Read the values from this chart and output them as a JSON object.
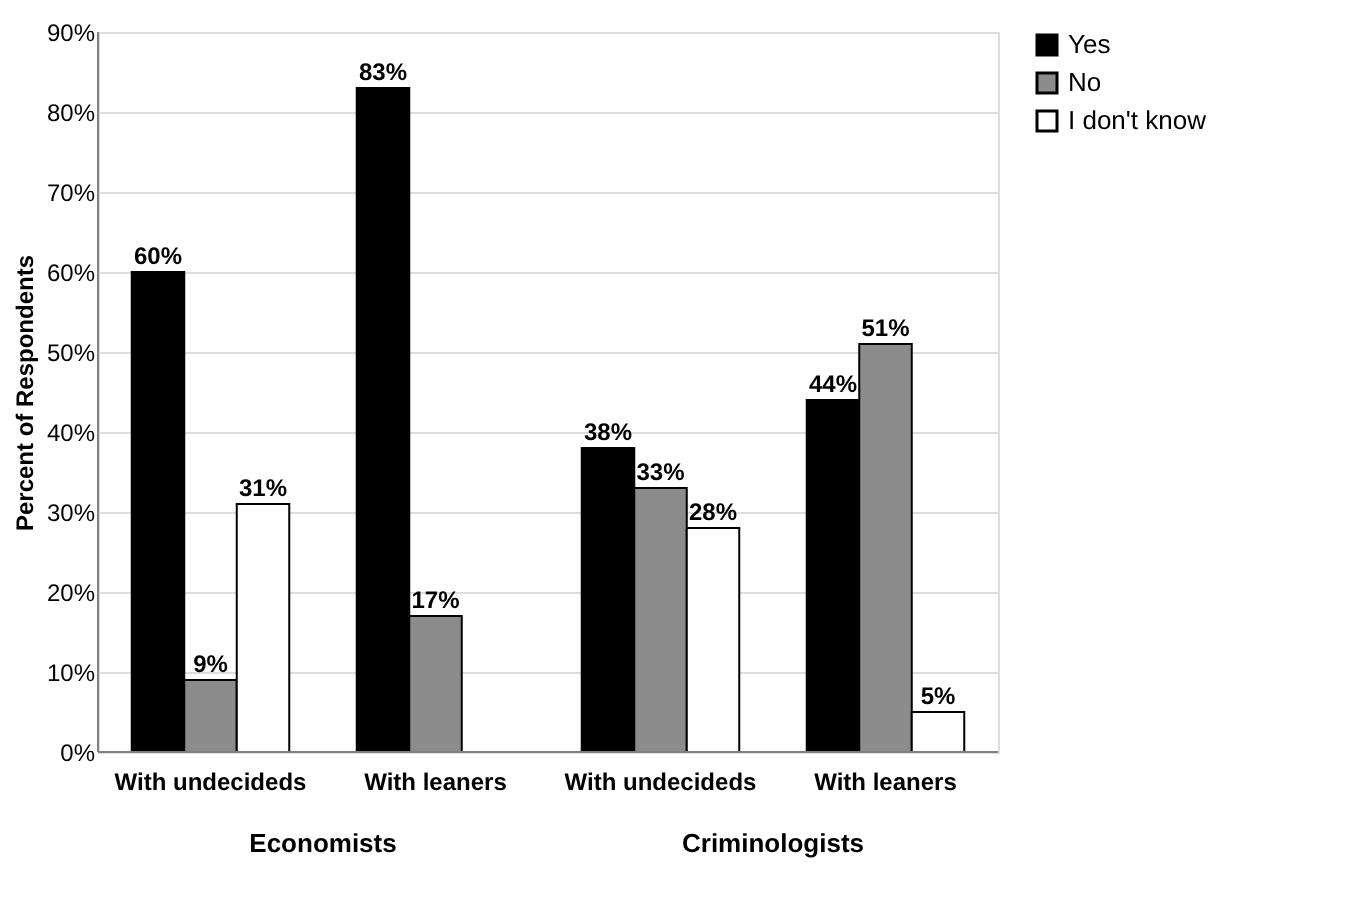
{
  "chart_data": {
    "type": "bar",
    "ylabel": "Percent of Respondents",
    "categories": [
      "With undecideds",
      "With leaners",
      "With undecideds",
      "With leaners"
    ],
    "annotations": [
      "Economists",
      "Criminologists"
    ],
    "series": [
      {
        "name": "Yes",
        "color": "#000000",
        "values": [
          60,
          83,
          38,
          44
        ],
        "value_labels": [
          "60%",
          "83%",
          "38%",
          "44%"
        ]
      },
      {
        "name": "No",
        "color": "#8c8c8c",
        "values": [
          9,
          17,
          33,
          51
        ],
        "value_labels": [
          "9%",
          "17%",
          "33%",
          "51%"
        ]
      },
      {
        "name": "I don't know",
        "color": "#ffffff",
        "values": [
          31,
          null,
          28,
          5
        ],
        "value_labels": [
          "31%",
          null,
          "28%",
          "5%"
        ]
      }
    ],
    "ylim": [
      0,
      90
    ],
    "yticks": [
      {
        "value": 0,
        "label": "0%"
      },
      {
        "value": 10,
        "label": "10%"
      },
      {
        "value": 20,
        "label": "20%"
      },
      {
        "value": 30,
        "label": "30%"
      },
      {
        "value": 40,
        "label": "40%"
      },
      {
        "value": 50,
        "label": "50%"
      },
      {
        "value": 60,
        "label": "60%"
      },
      {
        "value": 70,
        "label": "70%"
      },
      {
        "value": 80,
        "label": "80%"
      },
      {
        "value": 90,
        "label": "90%"
      }
    ],
    "grid": "y",
    "legend": "right"
  }
}
